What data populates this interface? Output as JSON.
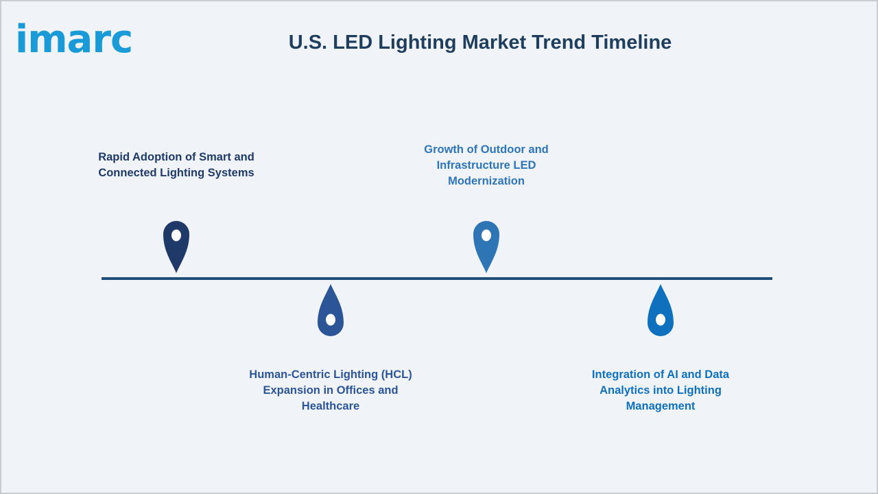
{
  "logo": {
    "text": "imarc"
  },
  "title": "U.S. LED Lighting Market Trend Timeline",
  "milestones": [
    {
      "label": "Rapid Adoption of Smart and Connected Lighting Systems",
      "color": "#1f3a68",
      "position": "above"
    },
    {
      "label": "Human-Centric Lighting (HCL) Expansion in Offices and Healthcare",
      "color": "#2b5597",
      "position": "below"
    },
    {
      "label": "Growth of Outdoor and Infrastructure LED Modernization",
      "color": "#2e75b6",
      "position": "above"
    },
    {
      "label": "Integration of AI and Data Analytics into Lighting Management",
      "color": "#0f70bd",
      "position": "below"
    }
  ],
  "colors": {
    "line": "#1f4e79",
    "logo": "#1a9ad6",
    "title": "#1f3e5e"
  }
}
